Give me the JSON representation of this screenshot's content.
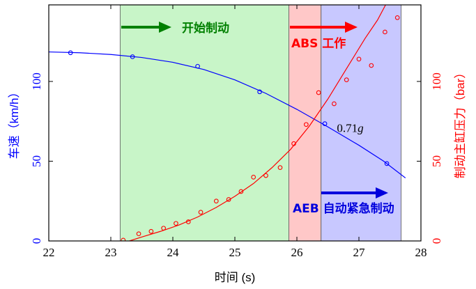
{
  "chart_data": {
    "type": "line",
    "xlabel": "时间 (s)",
    "ylabel_left": "车速（km/h）",
    "ylabel_right": "制动主缸压力（bar）",
    "xlim": [
      22,
      28
    ],
    "ylim_left": [
      0,
      148
    ],
    "ylim_right": [
      0,
      148
    ],
    "x_ticks": [
      22,
      23,
      24,
      25,
      26,
      27,
      28
    ],
    "y_ticks_left": [
      0,
      50,
      100
    ],
    "y_ticks_right": [
      0,
      50,
      100
    ],
    "colors": {
      "speed": "#0000ff",
      "pressure": "#ff0000",
      "region_start": "#c8f5c8",
      "region_abs": "#ffc8c8",
      "region_aeb": "#c8c8ff",
      "arrow_green": "#008000",
      "arrow_red": "#ff0000",
      "arrow_blue": "#0000dd"
    },
    "regions": [
      {
        "name": "开始制动",
        "x_start": 23.15,
        "x_end": 25.87
      },
      {
        "name": "ABS 工作",
        "x_start": 25.87,
        "x_end": 26.39
      },
      {
        "name": "AEB 自动紧急制动",
        "x_start": 26.39,
        "x_end": 27.68
      }
    ],
    "region_labels": {
      "start": "开始制动",
      "abs": "ABS 工作",
      "aeb": "AEB 自动紧急制动"
    },
    "series": [
      {
        "name": "车速",
        "axis": "left",
        "points": [
          [
            22.35,
            118
          ],
          [
            23.35,
            115.5
          ],
          [
            24.4,
            109.5
          ],
          [
            25.4,
            93.5
          ],
          [
            26.45,
            73.5
          ],
          [
            27.45,
            48.5
          ]
        ],
        "fit": [
          [
            22.0,
            118.5
          ],
          [
            22.5,
            118.0
          ],
          [
            23.0,
            116.9
          ],
          [
            23.5,
            115.0
          ],
          [
            24.0,
            112.0
          ],
          [
            24.5,
            107.5
          ],
          [
            25.0,
            101.0
          ],
          [
            25.5,
            92.5
          ],
          [
            26.0,
            82.5
          ],
          [
            26.5,
            71.5
          ],
          [
            27.0,
            60.0
          ],
          [
            27.4,
            50.0
          ],
          [
            27.75,
            39.5
          ]
        ]
      },
      {
        "name": "制动主缸压力",
        "axis": "right",
        "points": [
          [
            23.2,
            0.5
          ],
          [
            23.45,
            4.5
          ],
          [
            23.65,
            6
          ],
          [
            23.85,
            8
          ],
          [
            24.05,
            11
          ],
          [
            24.25,
            12
          ],
          [
            24.45,
            18
          ],
          [
            24.7,
            25
          ],
          [
            24.9,
            26
          ],
          [
            25.1,
            31
          ],
          [
            25.3,
            40
          ],
          [
            25.5,
            41
          ],
          [
            25.73,
            46
          ],
          [
            25.95,
            61
          ],
          [
            26.15,
            73
          ],
          [
            26.35,
            93
          ],
          [
            26.6,
            86
          ],
          [
            26.8,
            101
          ],
          [
            27.0,
            114
          ],
          [
            27.2,
            110
          ],
          [
            27.42,
            131
          ],
          [
            27.62,
            140
          ]
        ],
        "fit": [
          [
            23.3,
            0.0
          ],
          [
            23.5,
            2.5
          ],
          [
            23.8,
            6.0
          ],
          [
            24.1,
            10.0
          ],
          [
            24.4,
            15.0
          ],
          [
            24.7,
            21.0
          ],
          [
            25.0,
            28.0
          ],
          [
            25.3,
            36.0
          ],
          [
            25.6,
            46.0
          ],
          [
            25.9,
            57.5
          ],
          [
            26.2,
            72.0
          ],
          [
            26.5,
            89.0
          ],
          [
            26.8,
            108.0
          ],
          [
            27.1,
            127.0
          ],
          [
            27.3,
            138.5
          ],
          [
            27.43,
            148.0
          ]
        ]
      }
    ],
    "annotation": {
      "text": "0.71g",
      "x": 26.6,
      "y": 70
    }
  }
}
